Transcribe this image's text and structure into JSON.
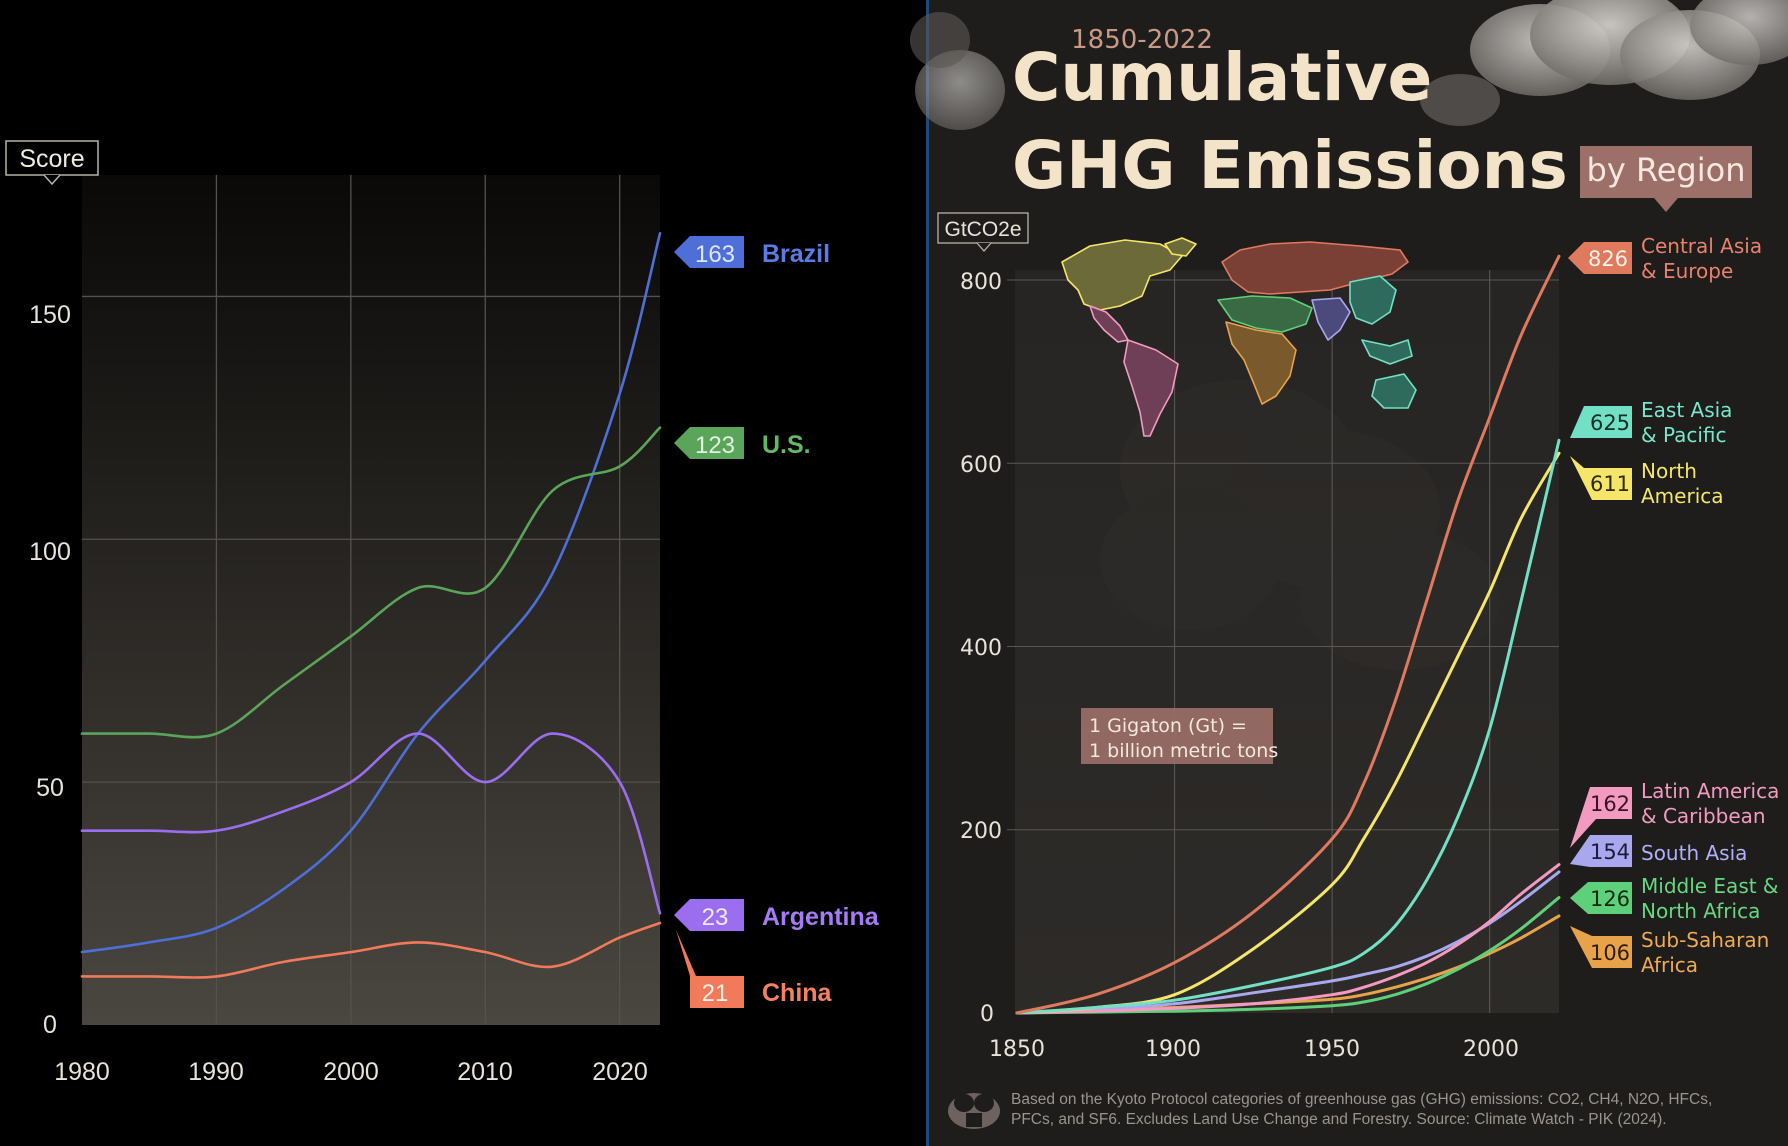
{
  "colors": {
    "left_bg": "#000000",
    "right_bg": "#1e1d1c",
    "divider": "#1f4a7a",
    "title": "#f3e3c8",
    "accent_rose": "#9c6f69",
    "grid_left": "#55524d",
    "grid_right": "#5a5753"
  },
  "left_chart": {
    "unit_label": "Score",
    "yticks": [
      "0",
      "50",
      "100",
      "150"
    ],
    "xticks": [
      "1980",
      "1990",
      "2000",
      "2010",
      "2020"
    ]
  },
  "right_chart": {
    "subtitle": "1850-2022",
    "title_line1": "Cumulative",
    "title_line2": "GHG Emissions",
    "title_tag": "by Region",
    "unit_label": "GtCO2e",
    "yticks": [
      "0",
      "200",
      "400",
      "600",
      "800"
    ],
    "xticks": [
      "1850",
      "1900",
      "1950",
      "2000"
    ],
    "note_line1": "1 Gigaton (Gt) =",
    "note_line2": "1 billion metric tons",
    "footer_line1": "Based on the Kyoto Protocol categories of greenhouse gas (GHG) emissions: CO2, CH4, N2O, HFCs,",
    "footer_line2": "PFCs, and SF6. Excludes Land Use Change and Forestry. Source: Climate Watch - PIK (2024)."
  },
  "chart_data": [
    {
      "type": "line",
      "title": "",
      "xlabel": "",
      "ylabel": "Score",
      "xlim": [
        1980,
        2023
      ],
      "ylim": [
        0,
        175
      ],
      "grid": true,
      "legend": "end-labels-right",
      "series": [
        {
          "name": "Brazil",
          "end_label": "163",
          "color": "#4f6fd8",
          "x": [
            1980,
            1985,
            1990,
            1995,
            2000,
            2005,
            2010,
            2015,
            2020,
            2023
          ],
          "y": [
            15,
            17,
            20,
            28,
            40,
            60,
            75,
            93,
            130,
            163
          ]
        },
        {
          "name": "U.S.",
          "end_label": "123",
          "color": "#5aa55a",
          "x": [
            1980,
            1985,
            1990,
            1995,
            2000,
            2005,
            2010,
            2015,
            2020,
            2023
          ],
          "y": [
            60,
            60,
            60,
            70,
            80,
            90,
            90,
            110,
            115,
            123
          ]
        },
        {
          "name": "Argentina",
          "end_label": "23",
          "color": "#9b6ef0",
          "x": [
            1980,
            1985,
            1990,
            1995,
            2000,
            2005,
            2010,
            2015,
            2020,
            2023
          ],
          "y": [
            40,
            40,
            40,
            44,
            50,
            60,
            50,
            60,
            50,
            23
          ]
        },
        {
          "name": "China",
          "end_label": "21",
          "color": "#f07a5a",
          "x": [
            1980,
            1985,
            1990,
            1995,
            2000,
            2005,
            2010,
            2015,
            2020,
            2023
          ],
          "y": [
            10,
            10,
            10,
            13,
            15,
            17,
            15,
            12,
            18,
            21
          ]
        }
      ]
    },
    {
      "type": "line",
      "title": "Cumulative GHG Emissions by Region",
      "subtitle": "1850-2022",
      "xlabel": "",
      "ylabel": "GtCO2e",
      "xlim": [
        1850,
        2022
      ],
      "ylim": [
        0,
        800
      ],
      "grid": true,
      "legend": "end-labels-right",
      "series": [
        {
          "name": "Central Asia & Europe",
          "end_label": "826",
          "color": "#e07a5f",
          "x": [
            1850,
            1875,
            1900,
            1925,
            1950,
            1960,
            1970,
            1980,
            1990,
            2000,
            2010,
            2022
          ],
          "y": [
            0,
            20,
            55,
            110,
            190,
            250,
            340,
            450,
            560,
            650,
            740,
            826
          ]
        },
        {
          "name": "East Asia & Pacific",
          "end_label": "625",
          "color": "#72e0c4",
          "x": [
            1850,
            1875,
            1900,
            1925,
            1950,
            1960,
            1970,
            1980,
            1990,
            2000,
            2010,
            2022
          ],
          "y": [
            0,
            6,
            14,
            30,
            50,
            65,
            95,
            145,
            215,
            310,
            450,
            625
          ]
        },
        {
          "name": "North America",
          "end_label": "611",
          "color": "#f5e66a",
          "x": [
            1850,
            1875,
            1900,
            1925,
            1950,
            1960,
            1970,
            1980,
            1990,
            2000,
            2010,
            2022
          ],
          "y": [
            0,
            6,
            20,
            70,
            140,
            190,
            250,
            320,
            390,
            460,
            540,
            611
          ]
        },
        {
          "name": "Latin America & Caribbean",
          "end_label": "162",
          "color": "#f29ac0",
          "x": [
            1850,
            1875,
            1900,
            1925,
            1950,
            1960,
            1970,
            1980,
            1990,
            2000,
            2010,
            2022
          ],
          "y": [
            0,
            2,
            5,
            10,
            20,
            28,
            40,
            55,
            75,
            100,
            130,
            162
          ]
        },
        {
          "name": "South Asia",
          "end_label": "154",
          "color": "#a9a8ef",
          "x": [
            1850,
            1875,
            1900,
            1925,
            1950,
            1960,
            1970,
            1980,
            1990,
            2000,
            2010,
            2022
          ],
          "y": [
            0,
            4,
            10,
            22,
            35,
            42,
            50,
            62,
            78,
            98,
            122,
            154
          ]
        },
        {
          "name": "Middle East & North Africa",
          "end_label": "126",
          "color": "#5fd07a",
          "x": [
            1850,
            1875,
            1900,
            1925,
            1950,
            1960,
            1970,
            1980,
            1990,
            2000,
            2010,
            2022
          ],
          "y": [
            0,
            1,
            2,
            4,
            8,
            12,
            20,
            32,
            48,
            68,
            92,
            126
          ]
        },
        {
          "name": "Sub-Saharan Africa",
          "end_label": "106",
          "color": "#e8a34a",
          "x": [
            1850,
            1875,
            1900,
            1925,
            1950,
            1960,
            1970,
            1980,
            1990,
            2000,
            2010,
            2022
          ],
          "y": [
            0,
            3,
            6,
            10,
            15,
            20,
            28,
            38,
            50,
            65,
            82,
            106
          ]
        }
      ]
    }
  ],
  "labels": {
    "brazil": "Brazil",
    "us": "U.S.",
    "argentina": "Argentina",
    "china": "China",
    "cae_1": "Central Asia",
    "cae_2": "& Europe",
    "eap_1": "East Asia",
    "eap_2": "& Pacific",
    "na_1": "North",
    "na_2": "America",
    "lac_1": "Latin America",
    "lac_2": "& Caribbean",
    "sa_1": "South Asia",
    "mena_1": "Middle East &",
    "mena_2": "North Africa",
    "ssa_1": "Sub-Saharan",
    "ssa_2": "Africa"
  }
}
